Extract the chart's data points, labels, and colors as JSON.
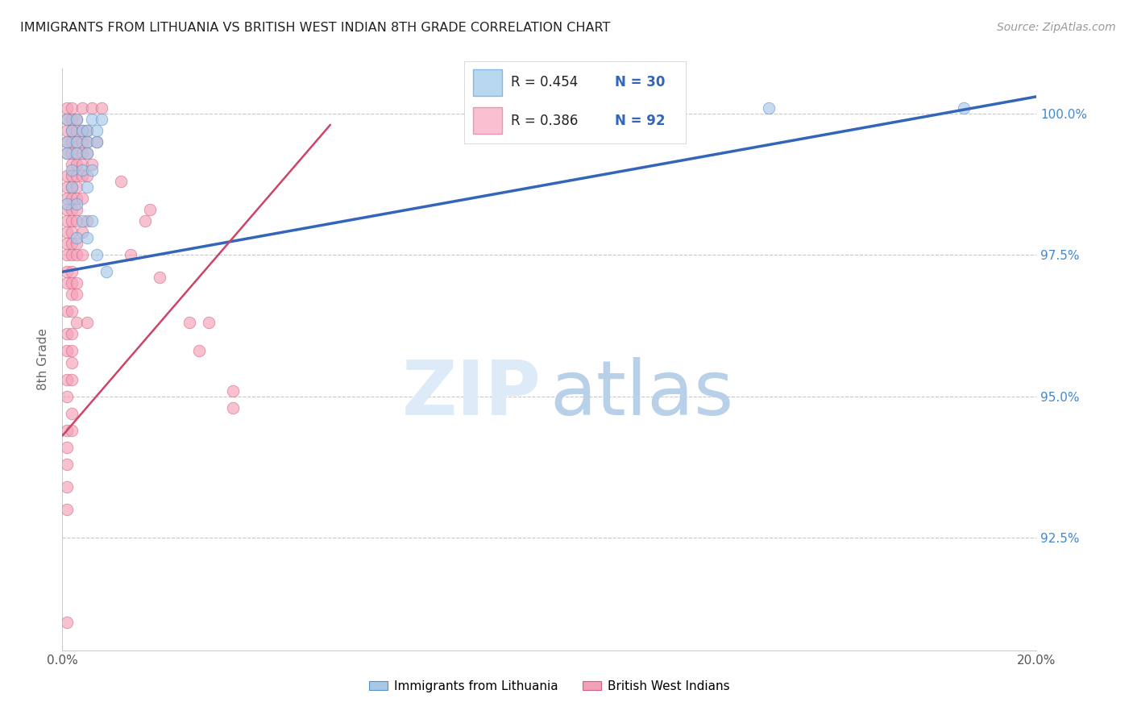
{
  "title": "IMMIGRANTS FROM LITHUANIA VS BRITISH WEST INDIAN 8TH GRADE CORRELATION CHART",
  "source": "Source: ZipAtlas.com",
  "ylabel": "8th Grade",
  "ylabel_right_labels": [
    "100.0%",
    "97.5%",
    "95.0%",
    "92.5%"
  ],
  "ylabel_right_values": [
    1.0,
    0.975,
    0.95,
    0.925
  ],
  "legend_bottom_blue": "Immigrants from Lithuania",
  "legend_bottom_pink": "British West Indians",
  "blue_color": "#a8c8e8",
  "pink_color": "#f4a0b8",
  "blue_edge_color": "#5590c8",
  "pink_edge_color": "#d06080",
  "blue_line_color": "#3366bb",
  "pink_line_color": "#cc4466",
  "xlim": [
    0.0,
    0.2
  ],
  "ylim": [
    0.905,
    1.008
  ],
  "blue_line": [
    [
      0.0,
      0.972
    ],
    [
      0.2,
      1.003
    ]
  ],
  "pink_line": [
    [
      0.0,
      0.943
    ],
    [
      0.055,
      0.998
    ]
  ],
  "blue_points": [
    [
      0.001,
      0.999
    ],
    [
      0.003,
      0.999
    ],
    [
      0.006,
      0.999
    ],
    [
      0.008,
      0.999
    ],
    [
      0.002,
      0.997
    ],
    [
      0.004,
      0.997
    ],
    [
      0.005,
      0.997
    ],
    [
      0.007,
      0.997
    ],
    [
      0.001,
      0.995
    ],
    [
      0.003,
      0.995
    ],
    [
      0.005,
      0.995
    ],
    [
      0.007,
      0.995
    ],
    [
      0.001,
      0.993
    ],
    [
      0.003,
      0.993
    ],
    [
      0.005,
      0.993
    ],
    [
      0.002,
      0.99
    ],
    [
      0.004,
      0.99
    ],
    [
      0.006,
      0.99
    ],
    [
      0.002,
      0.987
    ],
    [
      0.005,
      0.987
    ],
    [
      0.001,
      0.984
    ],
    [
      0.003,
      0.984
    ],
    [
      0.004,
      0.981
    ],
    [
      0.006,
      0.981
    ],
    [
      0.003,
      0.978
    ],
    [
      0.005,
      0.978
    ],
    [
      0.007,
      0.975
    ],
    [
      0.009,
      0.972
    ],
    [
      0.145,
      1.001
    ],
    [
      0.185,
      1.001
    ]
  ],
  "pink_points": [
    [
      0.001,
      1.001
    ],
    [
      0.002,
      1.001
    ],
    [
      0.004,
      1.001
    ],
    [
      0.006,
      1.001
    ],
    [
      0.008,
      1.001
    ],
    [
      0.001,
      0.999
    ],
    [
      0.002,
      0.999
    ],
    [
      0.003,
      0.999
    ],
    [
      0.001,
      0.997
    ],
    [
      0.002,
      0.997
    ],
    [
      0.003,
      0.997
    ],
    [
      0.004,
      0.997
    ],
    [
      0.005,
      0.997
    ],
    [
      0.001,
      0.995
    ],
    [
      0.002,
      0.995
    ],
    [
      0.003,
      0.995
    ],
    [
      0.004,
      0.995
    ],
    [
      0.005,
      0.995
    ],
    [
      0.007,
      0.995
    ],
    [
      0.001,
      0.993
    ],
    [
      0.002,
      0.993
    ],
    [
      0.003,
      0.993
    ],
    [
      0.004,
      0.993
    ],
    [
      0.005,
      0.993
    ],
    [
      0.002,
      0.991
    ],
    [
      0.003,
      0.991
    ],
    [
      0.004,
      0.991
    ],
    [
      0.006,
      0.991
    ],
    [
      0.001,
      0.989
    ],
    [
      0.002,
      0.989
    ],
    [
      0.003,
      0.989
    ],
    [
      0.004,
      0.989
    ],
    [
      0.005,
      0.989
    ],
    [
      0.001,
      0.987
    ],
    [
      0.002,
      0.987
    ],
    [
      0.003,
      0.987
    ],
    [
      0.001,
      0.985
    ],
    [
      0.002,
      0.985
    ],
    [
      0.003,
      0.985
    ],
    [
      0.004,
      0.985
    ],
    [
      0.001,
      0.983
    ],
    [
      0.002,
      0.983
    ],
    [
      0.003,
      0.983
    ],
    [
      0.001,
      0.981
    ],
    [
      0.002,
      0.981
    ],
    [
      0.003,
      0.981
    ],
    [
      0.005,
      0.981
    ],
    [
      0.001,
      0.979
    ],
    [
      0.002,
      0.979
    ],
    [
      0.004,
      0.979
    ],
    [
      0.001,
      0.977
    ],
    [
      0.002,
      0.977
    ],
    [
      0.003,
      0.977
    ],
    [
      0.001,
      0.975
    ],
    [
      0.002,
      0.975
    ],
    [
      0.003,
      0.975
    ],
    [
      0.004,
      0.975
    ],
    [
      0.001,
      0.972
    ],
    [
      0.002,
      0.972
    ],
    [
      0.001,
      0.97
    ],
    [
      0.002,
      0.97
    ],
    [
      0.003,
      0.97
    ],
    [
      0.002,
      0.968
    ],
    [
      0.003,
      0.968
    ],
    [
      0.001,
      0.965
    ],
    [
      0.002,
      0.965
    ],
    [
      0.003,
      0.963
    ],
    [
      0.005,
      0.963
    ],
    [
      0.001,
      0.961
    ],
    [
      0.002,
      0.961
    ],
    [
      0.001,
      0.958
    ],
    [
      0.002,
      0.958
    ],
    [
      0.002,
      0.956
    ],
    [
      0.001,
      0.953
    ],
    [
      0.002,
      0.953
    ],
    [
      0.001,
      0.95
    ],
    [
      0.002,
      0.947
    ],
    [
      0.001,
      0.944
    ],
    [
      0.002,
      0.944
    ],
    [
      0.001,
      0.941
    ],
    [
      0.001,
      0.938
    ],
    [
      0.001,
      0.934
    ],
    [
      0.001,
      0.93
    ],
    [
      0.014,
      0.975
    ],
    [
      0.017,
      0.981
    ],
    [
      0.02,
      0.971
    ],
    [
      0.026,
      0.963
    ],
    [
      0.03,
      0.963
    ],
    [
      0.028,
      0.958
    ],
    [
      0.035,
      0.951
    ],
    [
      0.035,
      0.948
    ],
    [
      0.012,
      0.988
    ],
    [
      0.018,
      0.983
    ],
    [
      0.001,
      0.91
    ]
  ]
}
